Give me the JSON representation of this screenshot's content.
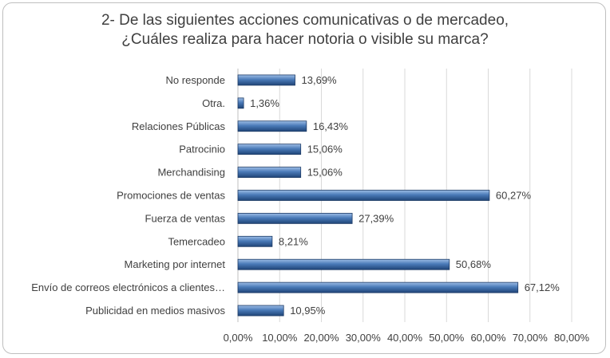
{
  "chart_data": {
    "type": "bar",
    "orientation": "horizontal",
    "title": [
      "2- De las siguientes acciones comunicativas o de mercadeo,",
      "¿Cuáles realiza para hacer notoria o visible su marca?"
    ],
    "categories": [
      "No responde",
      "Otra.",
      "Relaciones Públicas",
      "Patrocinio",
      "Merchandising",
      "Promociones de ventas",
      "Fuerza de ventas",
      "Temercadeo",
      "Marketing por internet",
      "Envío de correos electrónicos a clientes…",
      "Publicidad en medios masivos"
    ],
    "values": [
      13.69,
      1.36,
      16.43,
      15.06,
      15.06,
      60.27,
      27.39,
      8.21,
      50.68,
      67.12,
      10.95
    ],
    "value_labels": [
      "13,69%",
      "1,36%",
      "16,43%",
      "15,06%",
      "15,06%",
      "60,27%",
      "27,39%",
      "8,21%",
      "50,68%",
      "67,12%",
      "10,95%"
    ],
    "xlim": [
      0,
      80
    ],
    "x_ticks": [
      "0,00%",
      "10,00%",
      "20,00%",
      "30,00%",
      "40,00%",
      "50,00%",
      "60,00%",
      "70,00%",
      "80,00%"
    ],
    "grid": true,
    "legend": "none",
    "bar_color": "#4a7ab8"
  }
}
